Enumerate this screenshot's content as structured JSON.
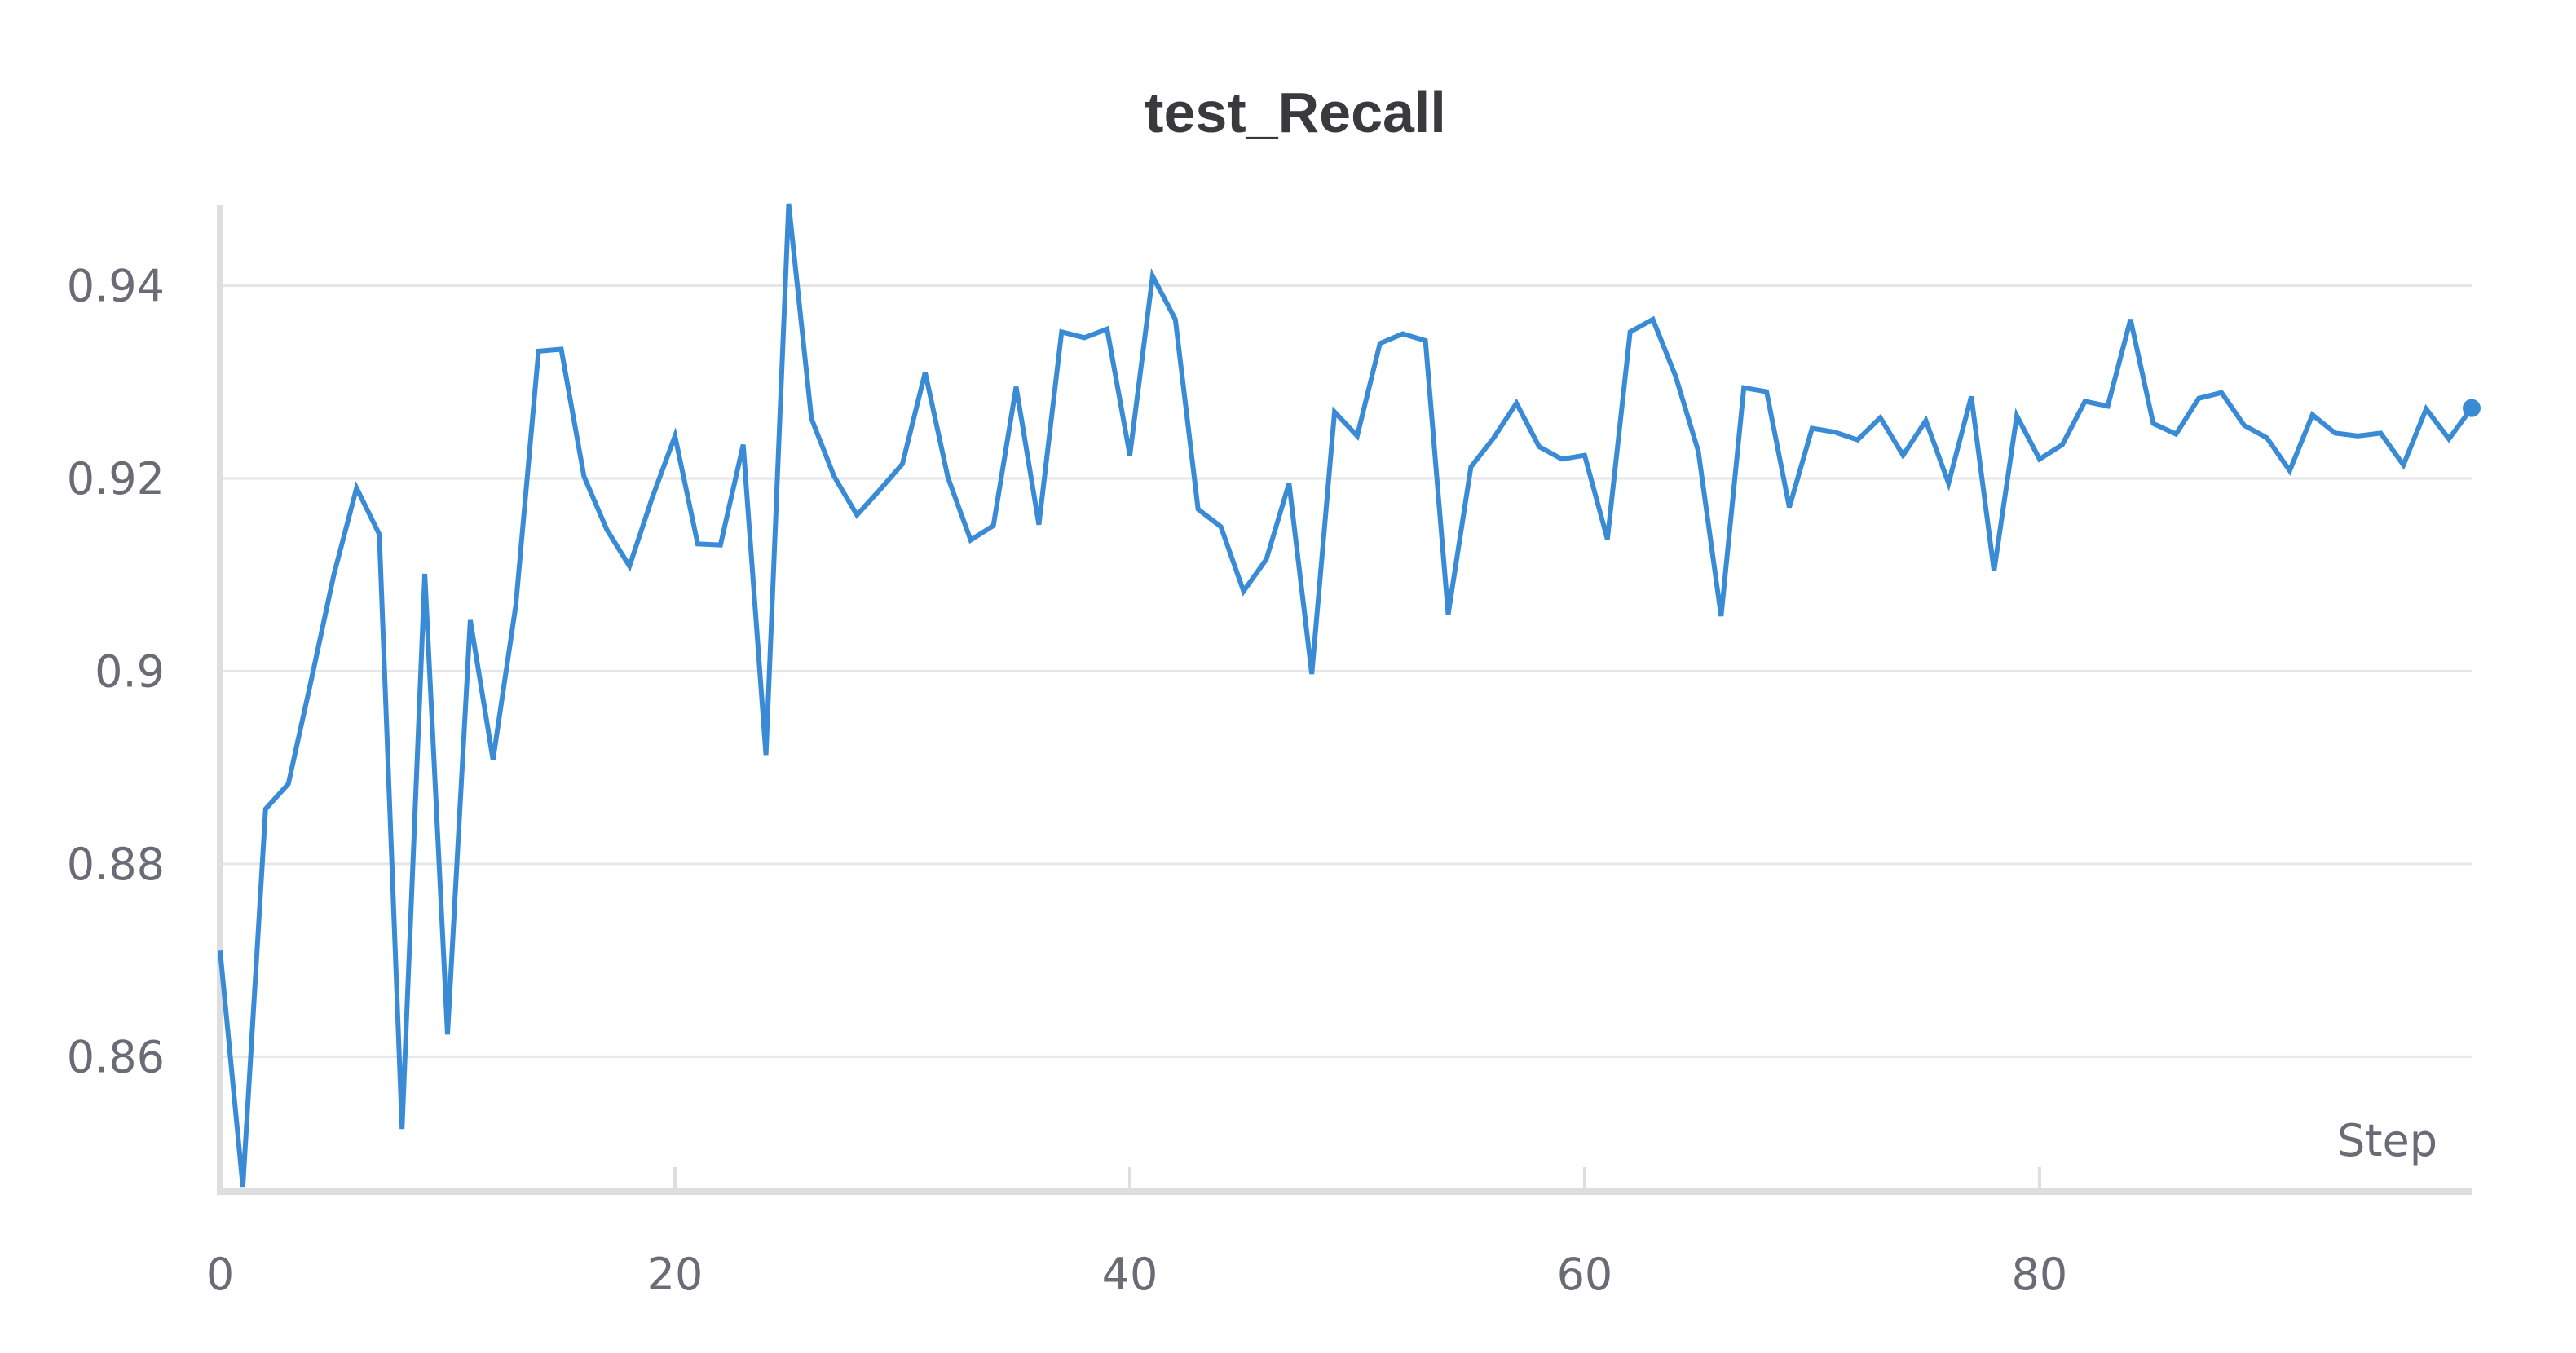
{
  "chart_data": {
    "type": "line",
    "title": "test_Recall",
    "xlabel": "Step",
    "ylabel": "",
    "xlim": [
      0,
      99
    ],
    "ylim": [
      0.8465,
      0.9485
    ],
    "x_ticks": [
      0,
      20,
      40,
      60,
      80
    ],
    "y_ticks": [
      0.86,
      0.88,
      0.9,
      0.92,
      0.94
    ],
    "x_tick_labels": [
      "0",
      "20",
      "40",
      "60",
      "80"
    ],
    "y_tick_labels": [
      "0.86",
      "0.88",
      "0.9",
      "0.92",
      "0.94"
    ],
    "grid": "horizontal",
    "legend": "none",
    "colors": {
      "series": "#3a8bd6",
      "grid": "#e6e6e8",
      "axis": "#dedede",
      "text": "#6b6b76",
      "title": "#3a3a3e"
    },
    "series": [
      {
        "x": [
          0,
          1,
          2,
          3,
          4,
          5,
          6,
          7,
          8,
          9,
          10,
          11,
          12,
          13,
          14,
          15,
          16,
          17,
          18,
          19,
          20,
          21,
          22,
          23,
          24,
          25,
          26,
          27,
          28,
          29,
          30,
          31,
          32,
          33,
          34,
          35,
          36,
          37,
          38,
          39,
          40,
          41,
          42,
          43,
          44,
          45,
          46,
          47,
          48,
          49,
          50,
          51,
          52,
          53,
          54,
          55,
          56,
          57,
          58,
          59,
          60,
          61,
          62,
          63,
          64,
          65,
          66,
          67,
          68,
          69,
          70,
          71,
          72,
          73,
          74,
          75,
          76,
          77,
          78,
          79,
          80,
          81,
          82,
          83,
          84,
          85,
          86,
          87,
          88,
          89,
          90,
          91,
          92,
          93,
          94,
          95,
          96,
          97,
          98,
          99
        ],
        "values": [
          0.871,
          0.8465,
          0.8857,
          0.8883,
          0.899,
          0.91,
          0.919,
          0.9142,
          0.8525,
          0.9101,
          0.8623,
          0.9053,
          0.8908,
          0.9068,
          0.9332,
          0.9334,
          0.9202,
          0.9147,
          0.9109,
          0.918,
          0.9244,
          0.9132,
          0.9131,
          0.9235,
          0.8913,
          0.9485,
          0.9262,
          0.9202,
          0.9162,
          0.9188,
          0.9215,
          0.931,
          0.9201,
          0.9136,
          0.9151,
          0.9295,
          0.9152,
          0.9352,
          0.9346,
          0.9355,
          0.9224,
          0.941,
          0.9365,
          0.9168,
          0.915,
          0.9083,
          0.9116,
          0.9195,
          0.8997,
          0.9269,
          0.9244,
          0.934,
          0.935,
          0.9343,
          0.9059,
          0.9212,
          0.9242,
          0.9278,
          0.9233,
          0.922,
          0.9224,
          0.9137,
          0.9352,
          0.9365,
          0.9306,
          0.9228,
          0.9057,
          0.9294,
          0.929,
          0.917,
          0.9252,
          0.9248,
          0.924,
          0.9263,
          0.9224,
          0.926,
          0.9195,
          0.9285,
          0.9104,
          0.9265,
          0.922,
          0.9235,
          0.928,
          0.9275,
          0.9365,
          0.9257,
          0.9246,
          0.9283,
          0.9289,
          0.9255,
          0.9242,
          0.9208,
          0.9266,
          0.9247,
          0.9244,
          0.9247,
          0.9214,
          0.9272,
          0.9241,
          0.9273
        ]
      }
    ]
  }
}
